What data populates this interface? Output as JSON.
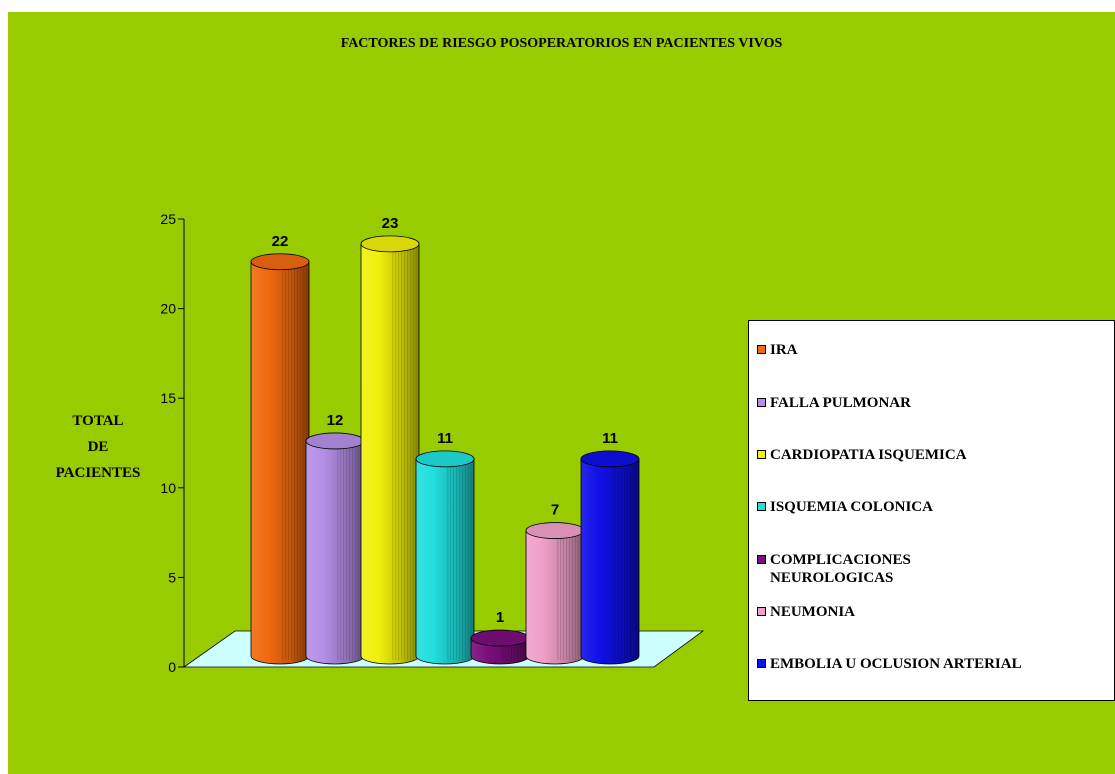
{
  "chart_data": {
    "type": "bar",
    "title": "FACTORES DE RIESGO POSOPERATORIOS EN PACIENTES VIVOS",
    "ylabel": [
      "TOTAL",
      "DE",
      "PACIENTES"
    ],
    "xlabel": "",
    "ylim": [
      0,
      25
    ],
    "yticks": [
      "0",
      "5",
      "10",
      "15",
      "20",
      "25"
    ],
    "categories": [
      "IRA",
      "FALLA PULMONAR",
      "CARDIOPATIA ISQUEMICA",
      "ISQUEMIA COLONICA",
      "COMPLICACIONES NEUROLOGICAS",
      "NEUMONIA",
      "EMBOLIA U OCLUSION ARTERIAL"
    ],
    "values": [
      22,
      12,
      23,
      11,
      1,
      7,
      11
    ],
    "data_labels": [
      "22",
      "12",
      "23",
      "11",
      "1",
      "7",
      "11"
    ],
    "colors": [
      "#f06a0f",
      "#b48fe6",
      "#f0f00a",
      "#20dede",
      "#7a0e7a",
      "#f0a0c8",
      "#1010e8"
    ],
    "legend": {
      "position": "right",
      "items": [
        {
          "label": "IRA",
          "color": "#f06a0f"
        },
        {
          "label": "FALLA PULMONAR",
          "color": "#b48fe6"
        },
        {
          "label": "CARDIOPATIA ISQUEMICA",
          "color": "#f0f00a"
        },
        {
          "label": "ISQUEMIA COLONICA",
          "color": "#20dede"
        },
        {
          "label": "COMPLICACIONES NEUROLOGICAS",
          "color": "#7a0e7a"
        },
        {
          "label": "NEUMONIA",
          "color": "#f0a0c8"
        },
        {
          "label": "EMBOLIA U OCLUSION ARTERIAL",
          "color": "#1010e8"
        }
      ]
    },
    "background_color": "#99cc00",
    "floor_color": "#ccffff",
    "style": "3d-cylinder"
  }
}
